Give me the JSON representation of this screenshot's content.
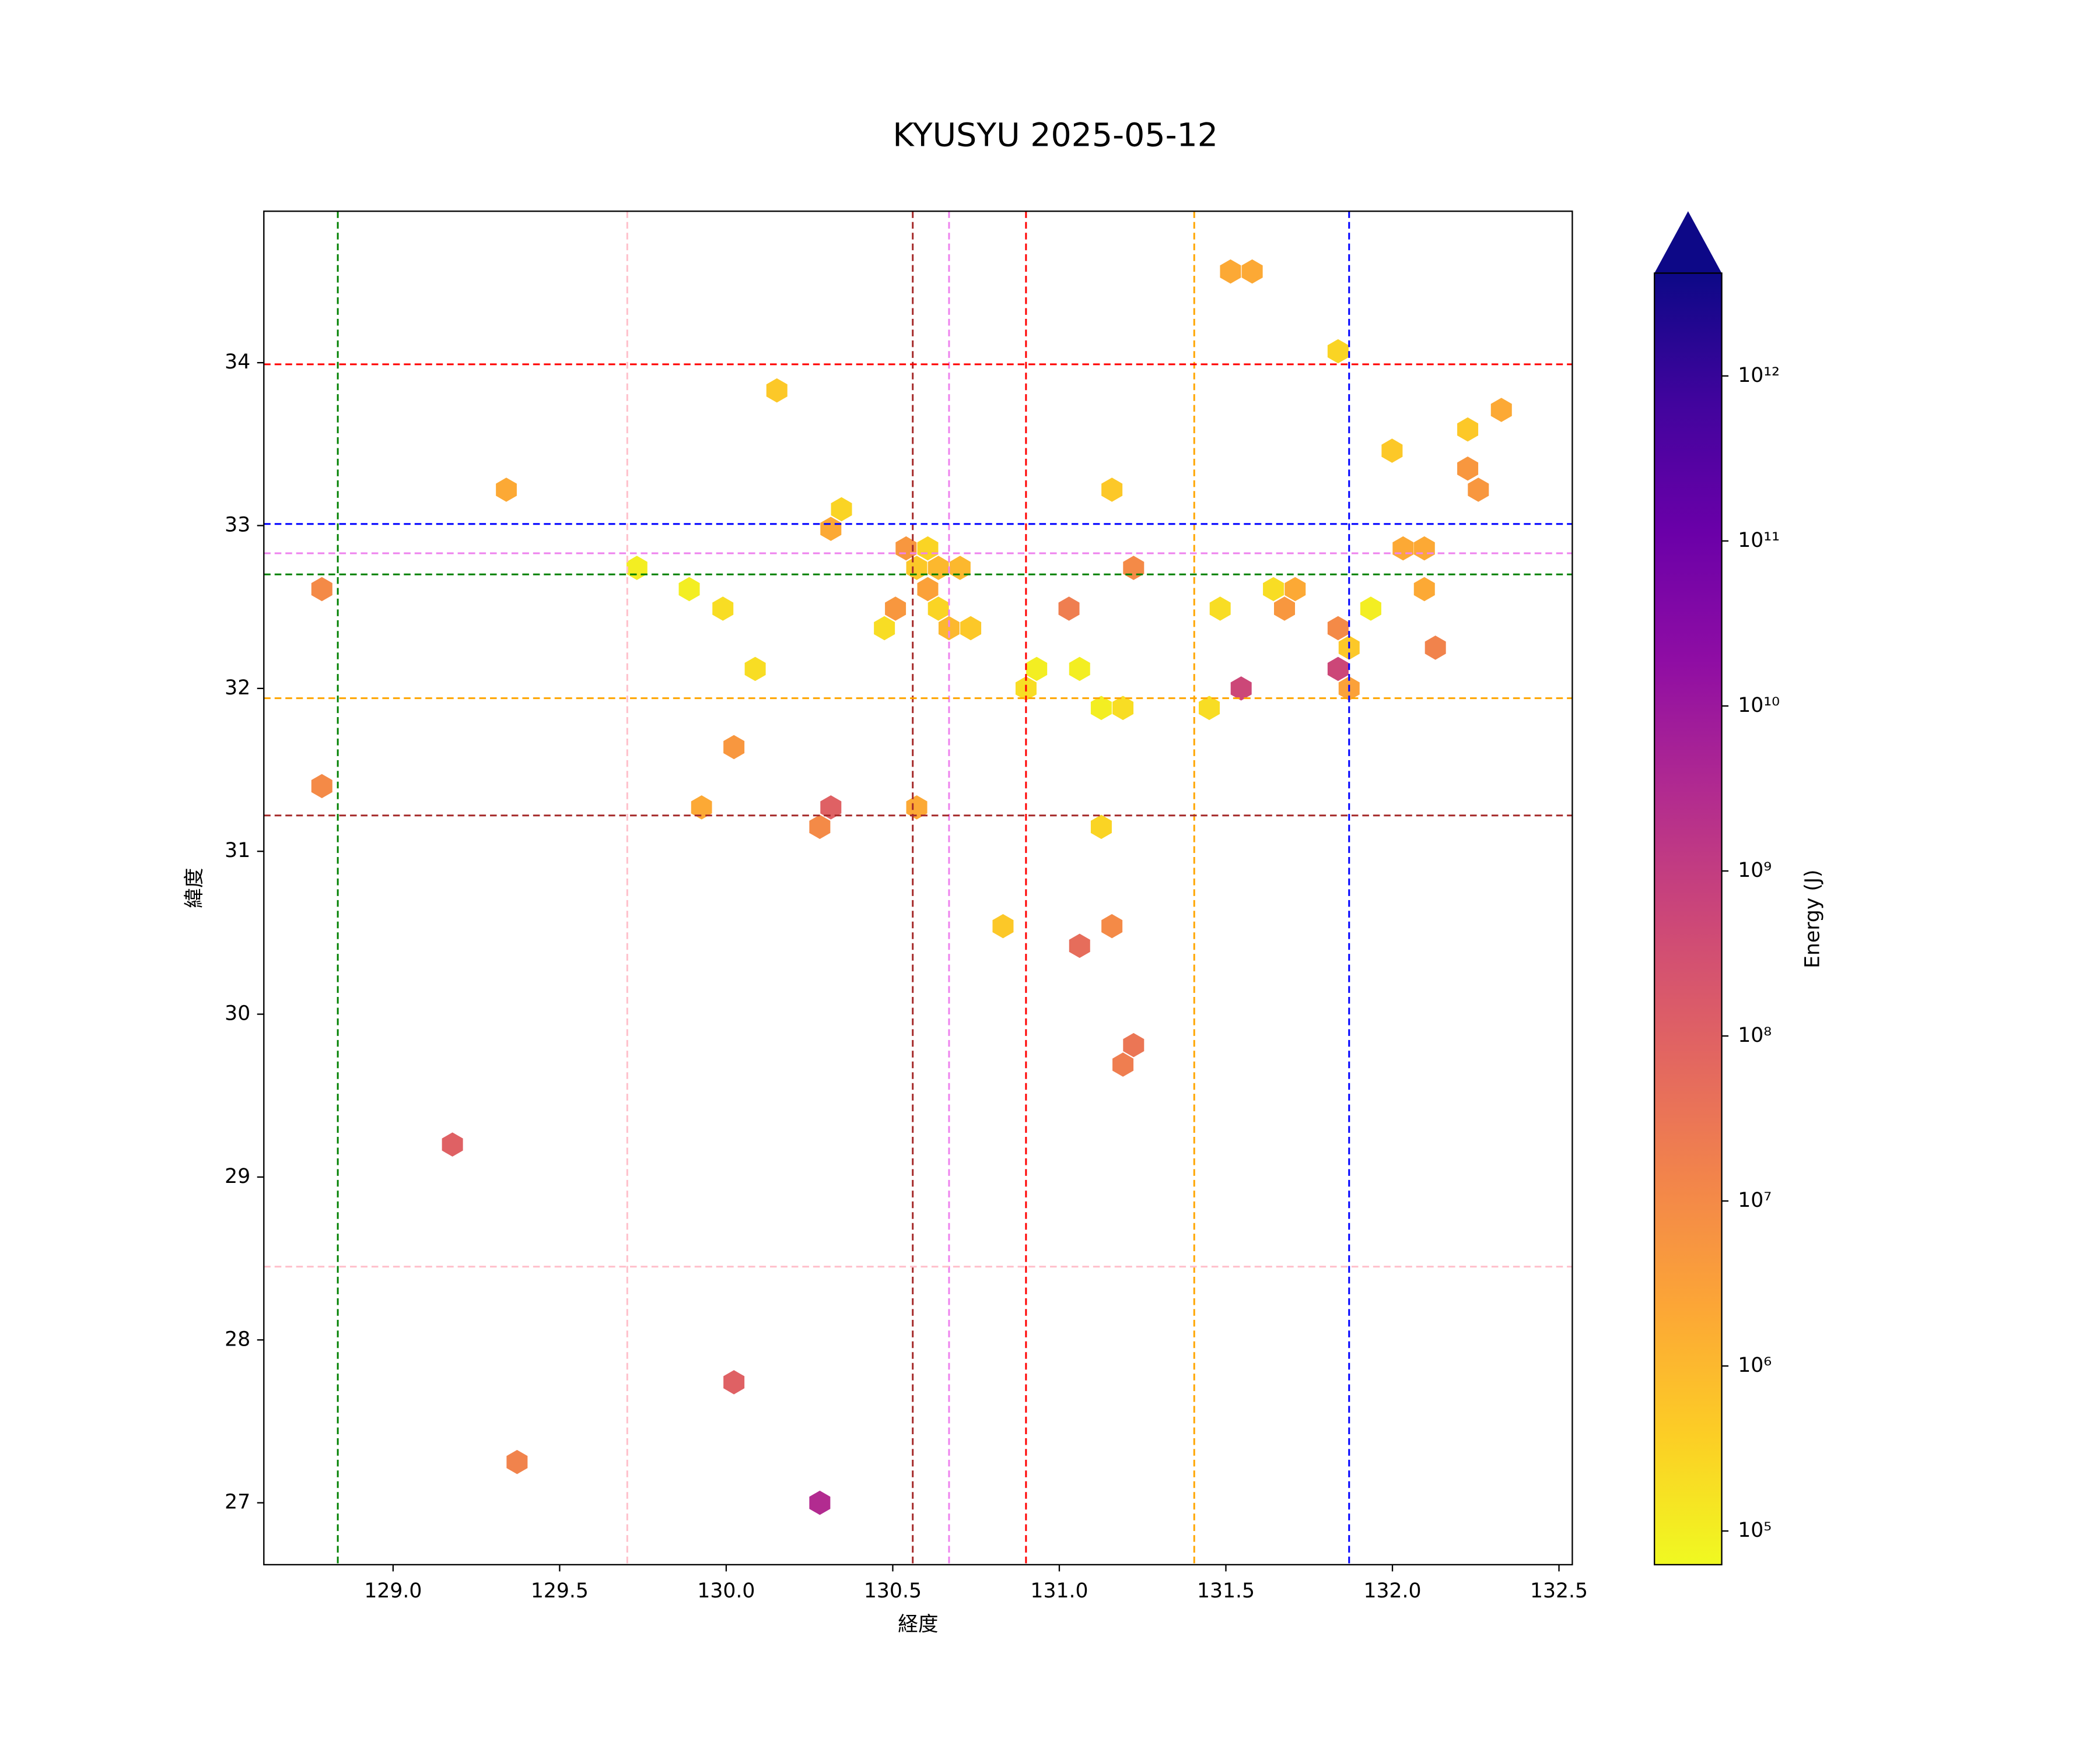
{
  "chart_data": {
    "type": "hexbin",
    "title": "KYUSYU 2025-05-12",
    "xlabel": "経度",
    "ylabel": "緯度",
    "colorbar_label": "Energy (J)",
    "cmap": "plasma_r",
    "log_scale": true,
    "clim": [
      62500,
      4200000000000
    ],
    "colorbar_ticks": [
      {
        "value": 100000,
        "label": "10⁵"
      },
      {
        "value": 1000000,
        "label": "10⁶"
      },
      {
        "value": 10000000,
        "label": "10⁷"
      },
      {
        "value": 100000000,
        "label": "10⁸"
      },
      {
        "value": 1000000000,
        "label": "10⁹"
      },
      {
        "value": 10000000000,
        "label": "10¹⁰"
      },
      {
        "value": 100000000000,
        "label": "10¹¹"
      },
      {
        "value": 1000000000000,
        "label": "10¹²"
      }
    ],
    "xlim": [
      128.612,
      132.54
    ],
    "ylim": [
      26.62,
      34.93
    ],
    "xticks": [
      {
        "value": 129,
        "label": "129.0"
      },
      129.5,
      {
        "value": 130,
        "label": "130.0"
      },
      130.5,
      {
        "value": 131,
        "label": "131.0"
      },
      131.5,
      {
        "value": 132,
        "label": "132.0"
      },
      132.5
    ],
    "yticks": [
      27,
      28,
      29,
      30,
      31,
      32,
      33,
      34
    ],
    "x": [
      128.786,
      128.786,
      129.178,
      129.372,
      129.34,
      129.732,
      129.889,
      129.99,
      130.087,
      130.152,
      130.023,
      129.926,
      130.023,
      130.281,
      130.281,
      130.314,
      130.314,
      130.346,
      130.475,
      130.508,
      130.54,
      130.572,
      130.605,
      130.605,
      130.637,
      130.637,
      130.669,
      130.702,
      130.734,
      130.572,
      130.831,
      130.9,
      130.932,
      131.029,
      131.061,
      131.061,
      131.126,
      131.191,
      131.126,
      131.158,
      131.158,
      131.223,
      131.223,
      131.191,
      131.45,
      131.483,
      131.514,
      131.579,
      131.546,
      131.643,
      131.676,
      131.708,
      131.837,
      131.837,
      131.837,
      131.87,
      131.87,
      131.935,
      131.999,
      132.032,
      132.096,
      132.096,
      132.129,
      132.226,
      132.226,
      132.258,
      132.327
    ],
    "y": [
      32.61,
      31.4,
      29.2,
      27.25,
      33.22,
      32.74,
      32.61,
      32.49,
      32.12,
      33.83,
      31.64,
      31.27,
      27.74,
      27.0,
      31.15,
      31.27,
      32.98,
      33.1,
      32.37,
      32.49,
      32.86,
      32.74,
      32.86,
      32.61,
      32.74,
      32.49,
      32.37,
      32.74,
      32.37,
      31.27,
      30.54,
      32.0,
      32.12,
      32.49,
      32.12,
      30.42,
      31.88,
      31.88,
      31.15,
      33.22,
      30.54,
      32.74,
      29.81,
      29.69,
      31.88,
      32.49,
      34.56,
      34.56,
      32.0,
      32.61,
      32.49,
      32.61,
      34.07,
      32.37,
      32.12,
      32.25,
      32.0,
      32.49,
      33.46,
      32.86,
      32.86,
      32.61,
      32.25,
      33.59,
      33.35,
      33.22,
      33.71
    ],
    "values": [
      10000000,
      10000000,
      100000000,
      15000000,
      2000000,
      100000,
      100000,
      200000,
      200000,
      500000,
      5000000,
      2000000,
      100000000,
      3000000000,
      10000000,
      100000000,
      2000000,
      300000,
      200000,
      5000000,
      5000000,
      500000,
      300000,
      3000000,
      1000000,
      300000,
      1000000,
      1000000,
      500000,
      2000000,
      500000,
      200000,
      100000,
      20000000,
      100000,
      50000000,
      100000,
      200000,
      300000,
      500000,
      10000000,
      10000000,
      30000000,
      20000000,
      200000,
      200000,
      2000000,
      2000000,
      500000000,
      200000,
      5000000,
      2000000,
      300000,
      10000000,
      500000000,
      500000,
      3000000,
      100000,
      500000,
      2000000,
      2000000,
      2000000,
      15000000,
      500000,
      5000000,
      5000000,
      2000000
    ],
    "vlines": [
      {
        "x": 128.834,
        "color": "green"
      },
      {
        "x": 129.703,
        "color": "pink"
      },
      {
        "x": 130.56,
        "color": "brown"
      },
      {
        "x": 130.669,
        "color": "violet"
      },
      {
        "x": 130.9,
        "color": "red"
      },
      {
        "x": 131.405,
        "color": "orange"
      },
      {
        "x": 131.87,
        "color": "blue"
      }
    ],
    "hlines": [
      {
        "y": 33.99,
        "color": "red"
      },
      {
        "y": 33.01,
        "color": "blue"
      },
      {
        "y": 32.83,
        "color": "violet"
      },
      {
        "y": 32.7,
        "color": "green"
      },
      {
        "y": 31.94,
        "color": "orange"
      },
      {
        "y": 31.22,
        "color": "brown"
      },
      {
        "y": 28.45,
        "color": "pink"
      }
    ]
  }
}
